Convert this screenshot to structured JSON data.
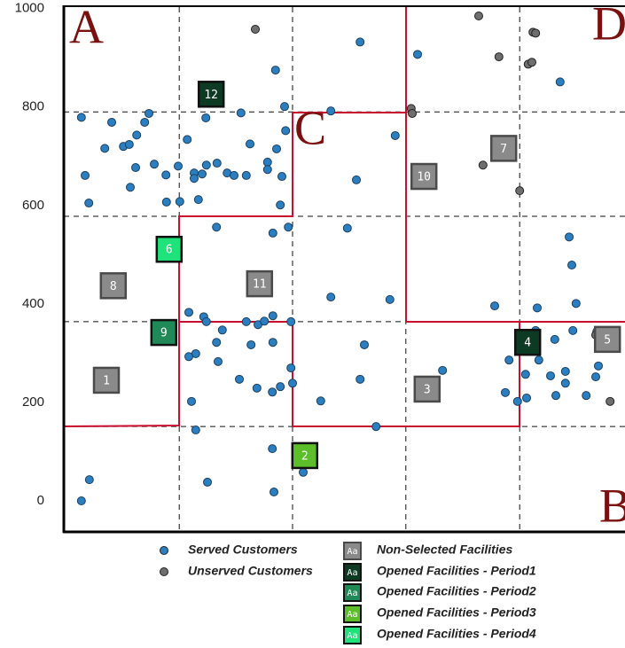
{
  "chart_data": {
    "type": "scatter",
    "xlim": [
      0,
      1055
    ],
    "ylim": [
      -63,
      1003
    ],
    "yticks": [
      0,
      200,
      400,
      600,
      800,
      1000
    ],
    "xgrid": [
      217,
      430,
      643,
      857
    ],
    "ygrid": [
      151,
      364,
      578,
      790
    ],
    "annotations": [
      "A",
      "B",
      "C",
      "D"
    ],
    "series": [
      {
        "name": "Served Customers",
        "color": "#2b7fc1",
        "x": [
          33,
          90,
          160,
          40,
          77,
          112,
          123,
          152,
          137,
          135,
          170,
          192,
          215,
          125,
          47,
          193,
          218,
          253,
          232,
          245,
          245,
          260,
          268,
          267,
          288,
          307,
          320,
          333,
          343,
          350,
          383,
          383,
          400,
          410,
          415,
          417,
          398,
          502,
          557,
          665,
          550,
          623,
          407,
          287,
          393,
          422,
          533,
          370,
          502,
          613,
          235,
          263,
          268,
          298,
          287,
          290,
          248,
          235,
          330,
          343,
          365,
          352,
          377,
          393,
          393,
          363,
          392,
          407,
          427,
          427,
          430,
          483,
          557,
          565,
          587,
          712,
          240,
          248,
          270,
          395,
          392,
          450,
          33,
          48,
          810,
          837,
          830,
          853,
          870,
          887,
          893,
          868,
          915,
          923,
          925,
          943,
          943,
          957,
          933,
          950,
          955,
          963,
          1002,
          982,
          1005,
          1000,
          890
        ],
        "y": [
          779,
          769,
          787,
          661,
          716,
          720,
          724,
          769,
          743,
          677,
          684,
          662,
          680,
          637,
          605,
          607,
          608,
          612,
          734,
          666,
          655,
          664,
          682,
          778,
          686,
          666,
          661,
          788,
          661,
          725,
          688,
          673,
          715,
          659,
          801,
          752,
          875,
          792,
          932,
          907,
          652,
          742,
          601,
          556,
          544,
          556,
          554,
          443,
          414,
          409,
          383,
          374,
          364,
          347,
          322,
          283,
          299,
          293,
          247,
          364,
          358,
          317,
          365,
          376,
          322,
          229,
          221,
          232,
          364,
          270,
          239,
          203,
          247,
          317,
          151,
          265,
          202,
          144,
          38,
          18,
          106,
          58,
          0,
          43,
          396,
          286,
          220,
          202,
          209,
          346,
          286,
          257,
          254,
          328,
          214,
          263,
          239,
          346,
          851,
          536,
          479,
          401,
          344,
          214,
          274,
          252,
          392
        ]
      },
      {
        "name": "Unserved Customers",
        "color": "#6e6e6e",
        "x": [
          360,
          780,
          818,
          882,
          887,
          873,
          880,
          653,
          655,
          788,
          857,
          1000,
          1027
        ],
        "y": [
          958,
          985,
          902,
          952,
          950,
          887,
          891,
          797,
          787,
          682,
          630,
          337,
          202
        ]
      }
    ],
    "facility_groups": [
      {
        "name": "Non-Selected Facilities",
        "color": "#8a8a8a"
      },
      {
        "name": "Opened Facilities - Period1",
        "color": "#0c3a23"
      },
      {
        "name": "Opened Facilities - Period2",
        "color": "#1f8a58"
      },
      {
        "name": "Opened Facilities - Period3",
        "color": "#5cbf2a"
      },
      {
        "name": "Opened Facilities - Period4",
        "color": "#1fe27a"
      }
    ],
    "swatch_text": "Aa",
    "facilities": {
      "labels": [
        "1",
        "2",
        "3",
        "4",
        "5",
        "6",
        "7",
        "8",
        "9",
        "10",
        "11",
        "12"
      ],
      "x": [
        80,
        453,
        683,
        872,
        1022,
        198,
        827,
        93,
        188,
        677,
        368,
        277
      ],
      "y": [
        245,
        92,
        227,
        322,
        328,
        511,
        716,
        437,
        342,
        659,
        441,
        826
      ],
      "group": [
        0,
        3,
        0,
        1,
        0,
        4,
        0,
        0,
        2,
        0,
        0,
        1
      ]
    }
  }
}
